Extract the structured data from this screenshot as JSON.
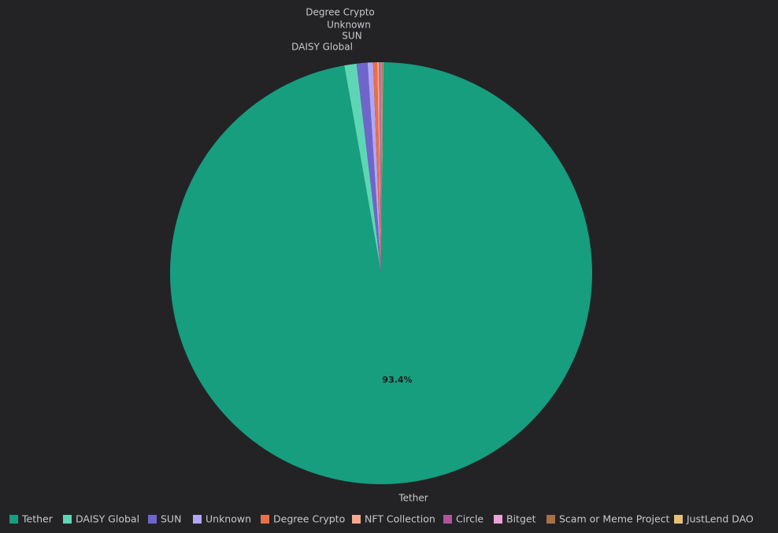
{
  "chart_data": {
    "type": "pie",
    "categories": [
      "Tether",
      "DAISY Global",
      "SUN",
      "Unknown",
      "Degree Crypto",
      "NFT Collection",
      "Circle",
      "Bitget",
      "Scam or Meme Project",
      "JustLend DAO"
    ],
    "values": [
      93.4,
      0.9,
      0.8,
      0.4,
      0.3,
      0.15,
      0.1,
      0.08,
      0.06,
      0.05
    ],
    "value_labels": [
      "93.4%",
      null,
      null,
      null,
      null,
      null,
      null,
      null,
      null,
      null
    ],
    "colors": [
      "#169e7e",
      "#5ed6b6",
      "#6f66cc",
      "#b2a6f5",
      "#e8704a",
      "#f5a88e",
      "#b0559a",
      "#e9a3d9",
      "#a87048",
      "#e6c07a"
    ],
    "legend": "bottom"
  }
}
